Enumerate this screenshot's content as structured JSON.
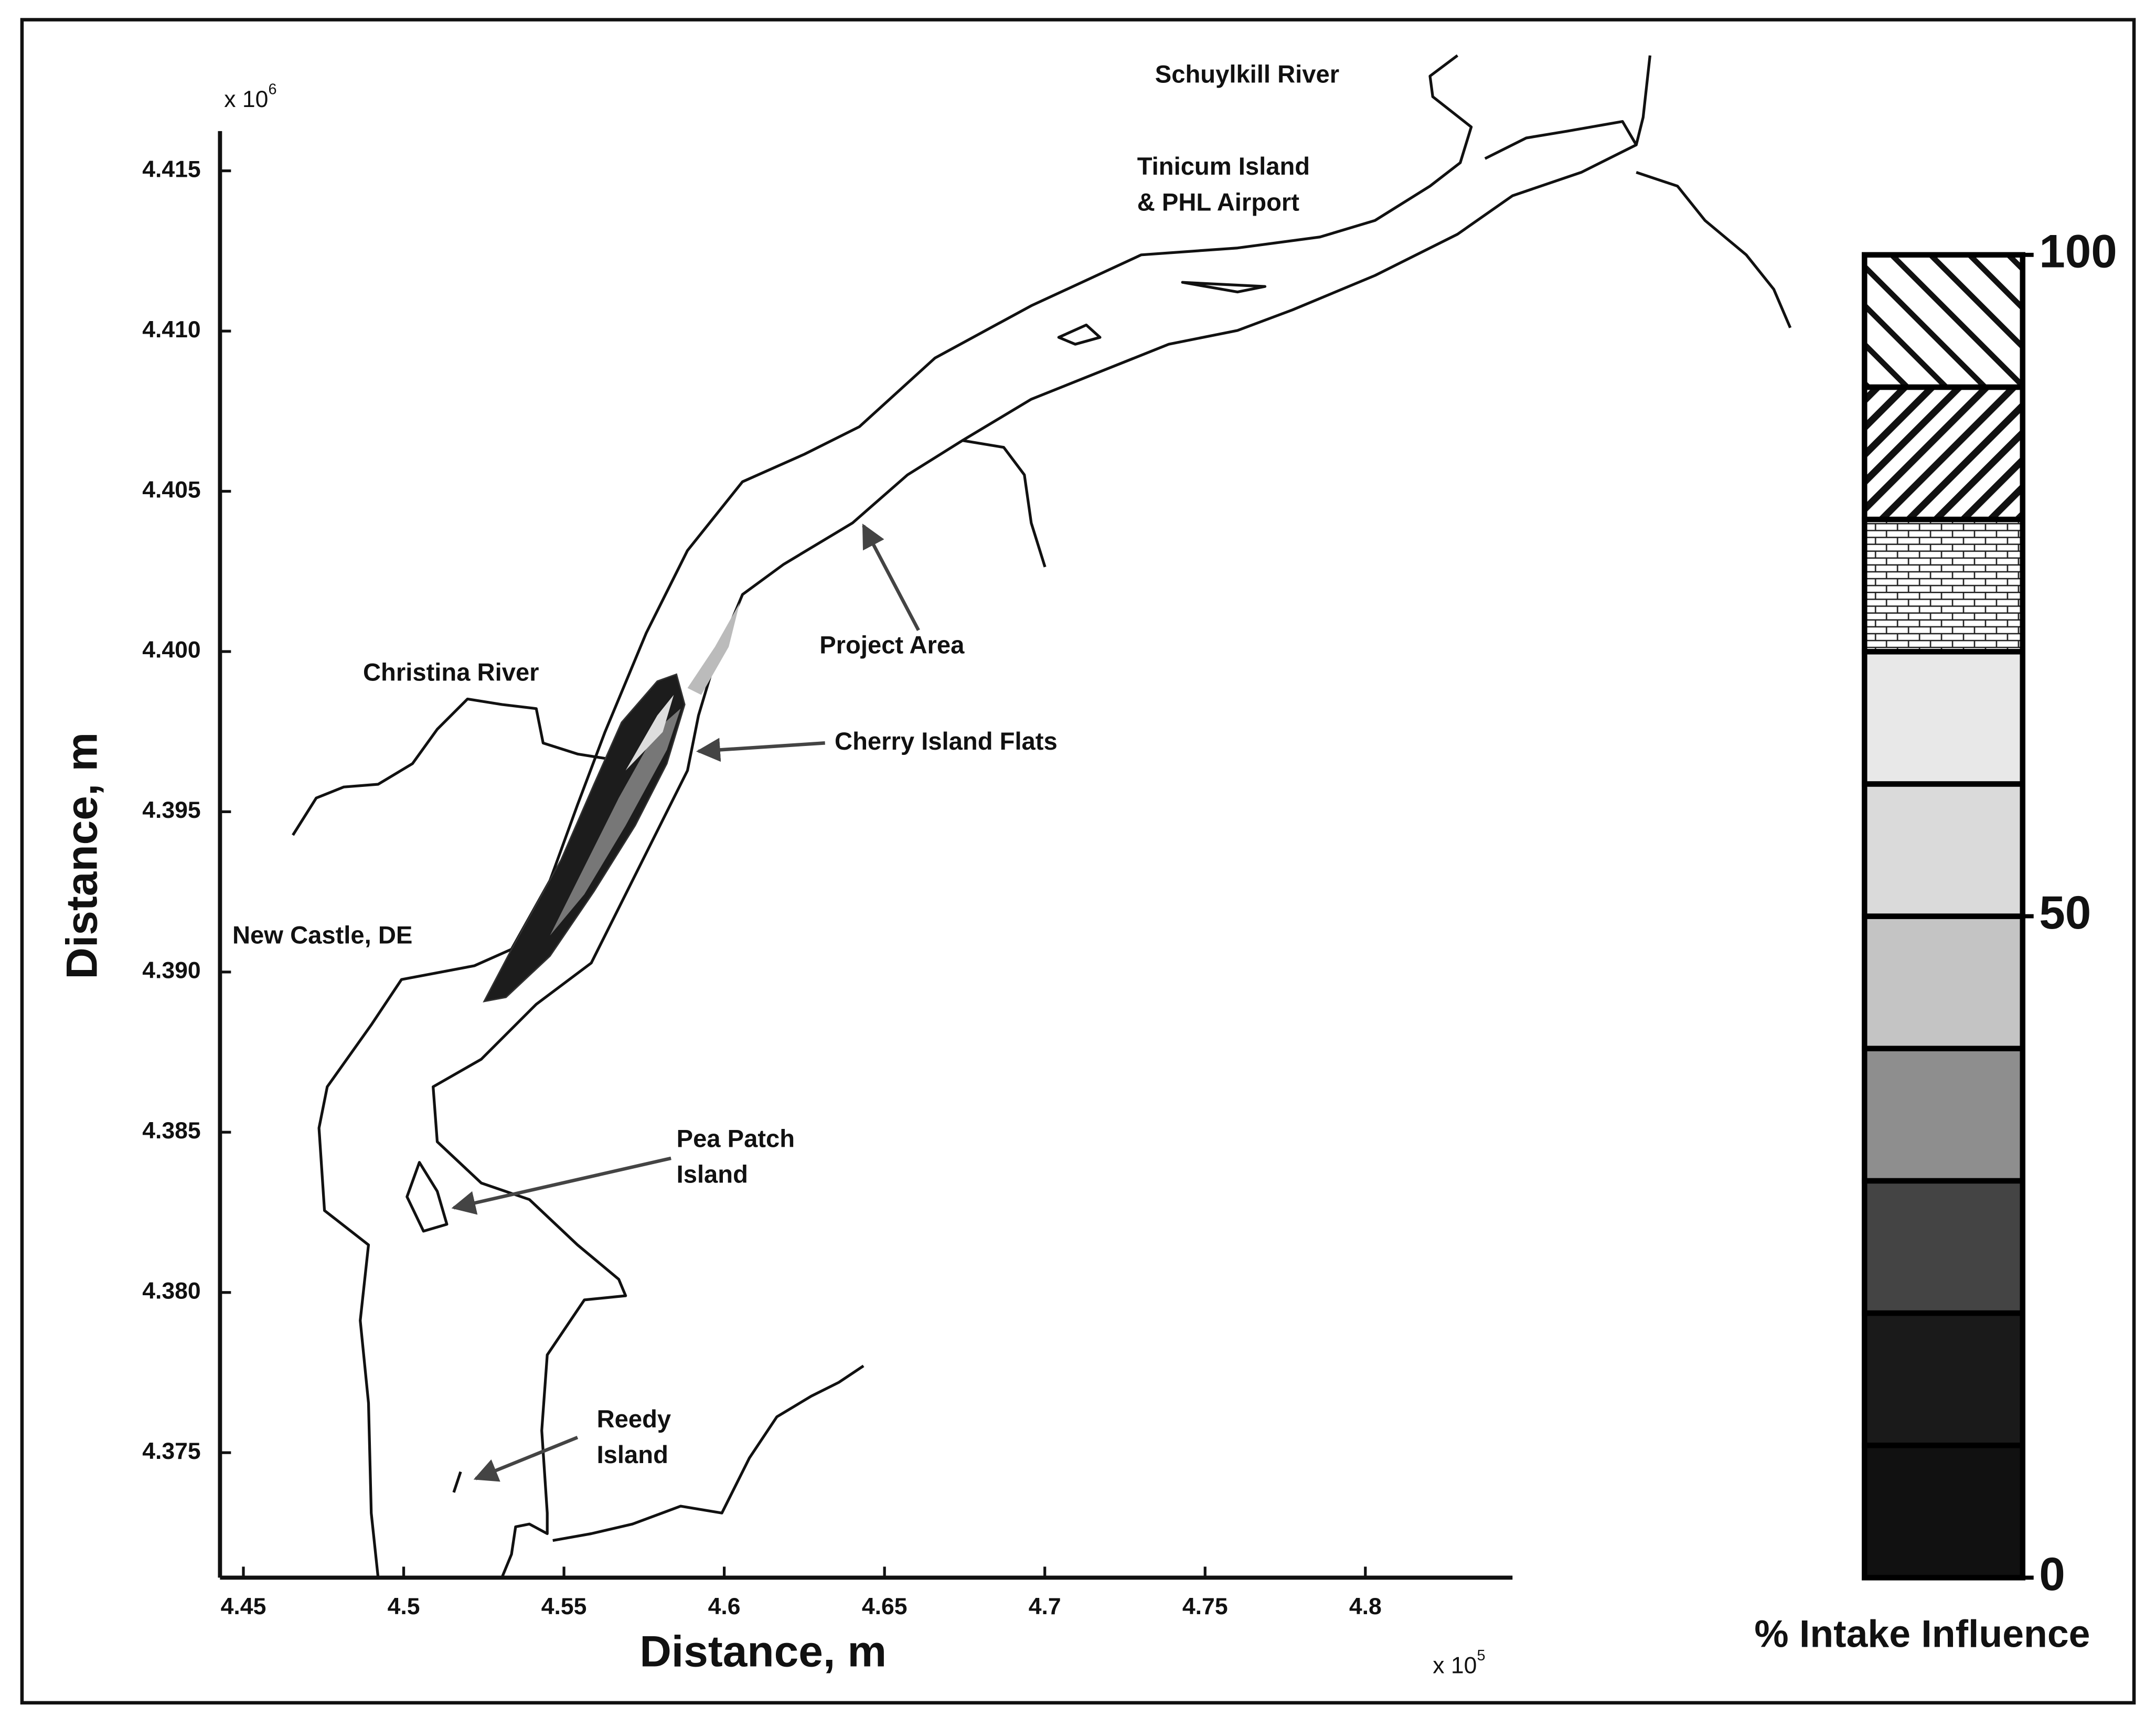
{
  "chart_data": {
    "type": "map",
    "x_label": "Distance, m",
    "y_label": "Distance, m",
    "x_multiplier": "x 10",
    "x_multiplier_exp": "5",
    "y_multiplier": "x 10",
    "y_multiplier_exp": "6",
    "xlim": [
      4.4427,
      4.8459
    ],
    "ylim": [
      4.3711,
      4.41624
    ],
    "xticks": [
      4.45,
      4.5,
      4.55,
      4.6,
      4.65,
      4.7,
      4.75,
      4.8
    ],
    "yticks": [
      4.375,
      {
        "value": 4.38,
        "label": "4.380"
      },
      4.385,
      {
        "value": 4.39,
        "label": "4.390"
      },
      4.395,
      {
        "value": 4.4,
        "label": "4.400"
      },
      4.405,
      {
        "value": 4.41,
        "label": "4.410"
      },
      4.415
    ],
    "annotations": [
      {
        "lines": [
          "Schuylkill River"
        ]
      },
      {
        "lines": [
          "Tinicum Island",
          "& PHL Airport"
        ]
      },
      {
        "lines": [
          "Project Area"
        ]
      },
      {
        "lines": [
          "Christina River"
        ]
      },
      {
        "lines": [
          "Cherry Island Flats"
        ]
      },
      {
        "lines": [
          "New Castle, DE"
        ]
      },
      {
        "lines": [
          "Pea Patch",
          "Island"
        ]
      },
      {
        "lines": [
          "Reedy",
          "Island"
        ]
      }
    ],
    "colorbar": {
      "label": "% Intake Influence",
      "lim": [
        0,
        100
      ],
      "levels": [
        0,
        10,
        20,
        30,
        40,
        50,
        60,
        70,
        80,
        90,
        100
      ],
      "fills": [
        "#111111",
        "#1a1a1a",
        "#444444",
        "#8e8e8e",
        "#c4c4c4",
        "#dadada",
        "#e8e8e8",
        "url(#brick)",
        "url(#hatch)",
        "url(#hatch-wide)"
      ],
      "ticks": [
        0,
        50,
        100
      ]
    }
  }
}
